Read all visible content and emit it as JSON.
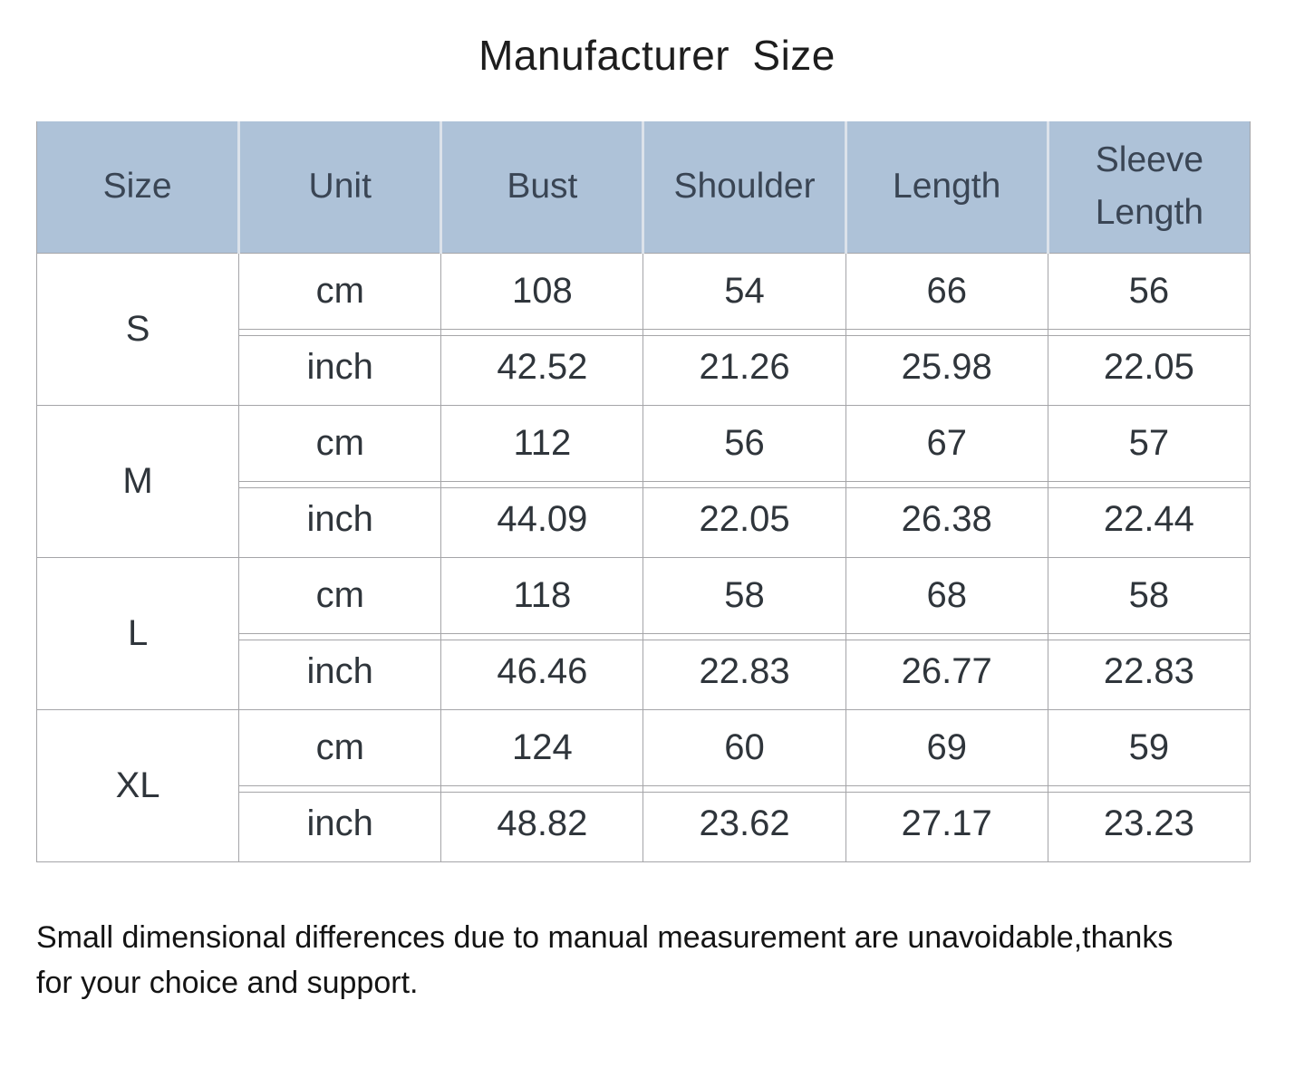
{
  "title": "Manufacturer Size",
  "table": {
    "columns": [
      "Size",
      "Unit",
      "Bust",
      "Shoulder",
      "Length",
      "Sleeve Length"
    ],
    "groups": [
      {
        "size": "S",
        "rows": [
          {
            "unit": "cm",
            "bust": "108",
            "shoulder": "54",
            "length": "66",
            "sleeve": "56"
          },
          {
            "unit": "inch",
            "bust": "42.52",
            "shoulder": "21.26",
            "length": "25.98",
            "sleeve": "22.05"
          }
        ]
      },
      {
        "size": "M",
        "rows": [
          {
            "unit": "cm",
            "bust": "112",
            "shoulder": "56",
            "length": "67",
            "sleeve": "57"
          },
          {
            "unit": "inch",
            "bust": "44.09",
            "shoulder": "22.05",
            "length": "26.38",
            "sleeve": "22.44"
          }
        ]
      },
      {
        "size": "L",
        "rows": [
          {
            "unit": "cm",
            "bust": "118",
            "shoulder": "58",
            "length": "68",
            "sleeve": "58"
          },
          {
            "unit": "inch",
            "bust": "46.46",
            "shoulder": "22.83",
            "length": "26.77",
            "sleeve": "22.83"
          }
        ]
      },
      {
        "size": "XL",
        "rows": [
          {
            "unit": "cm",
            "bust": "124",
            "shoulder": "60",
            "length": "69",
            "sleeve": "59"
          },
          {
            "unit": "inch",
            "bust": "48.82",
            "shoulder": "23.62",
            "length": "27.17",
            "sleeve": "23.23"
          }
        ]
      }
    ]
  },
  "footer_lines": [
    "Small dimensional differences due to manual measurement are unavoidable,thanks",
    "for your choice and support."
  ],
  "colors": {
    "header_bg": "#aec2d8",
    "header_text": "#3a4554",
    "body_text": "#2f353b",
    "border": "#a5a5a8",
    "header_divider": "#dce2ea",
    "title_text": "#1d1d1d"
  }
}
